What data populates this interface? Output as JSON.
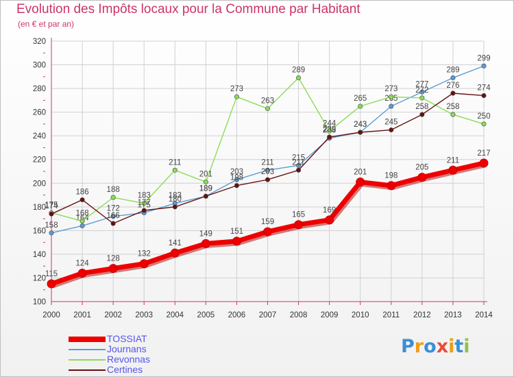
{
  "header": {
    "title": "Evolution des Impôts locaux pour la Commune par Habitant",
    "subtitle": "(en € et par an)"
  },
  "colors": {
    "title": "#cc3366",
    "grid": "#d0d0d0",
    "legend_text": "#5555ee"
  },
  "chart_data": {
    "type": "line",
    "title": "Evolution des Impôts locaux pour la Commune par Habitant",
    "subtitle": "(en € et par an)",
    "xlabel": "",
    "ylabel": "",
    "x": [
      "2000",
      "2001",
      "2002",
      "2003",
      "2004",
      "2005",
      "2006",
      "2007",
      "2008",
      "2009",
      "2010",
      "2011",
      "2012",
      "2013",
      "2014"
    ],
    "ylim": [
      100,
      320
    ],
    "yticks": [
      "100",
      "120",
      "140",
      "160",
      "180",
      "200",
      "220",
      "240",
      "260",
      "280",
      "300",
      "320"
    ],
    "grid": true,
    "legend_position": "bottom-left",
    "series": [
      {
        "name": "TOSSIAT",
        "color": "#ee0000",
        "values": [
          115,
          124,
          128,
          132,
          141,
          149,
          151,
          159,
          165,
          169,
          201,
          198,
          205,
          211,
          217
        ]
      },
      {
        "name": "Journans",
        "color": "#5b9bd5",
        "values": [
          158,
          164,
          172,
          175,
          183,
          189,
          203,
          211,
          215,
          238,
          243,
          265,
          277,
          289,
          299
        ]
      },
      {
        "name": "Revonnas",
        "color": "#88dd55",
        "values": [
          175,
          168,
          188,
          183,
          211,
          201,
          273,
          263,
          289,
          244,
          265,
          273,
          272,
          258,
          250
        ]
      },
      {
        "name": "Certines",
        "color": "#661111",
        "values": [
          174,
          186,
          166,
          177,
          180,
          189,
          198,
          203,
          211,
          239,
          243,
          245,
          258,
          276,
          274
        ]
      }
    ]
  },
  "logo": {
    "letters": [
      "P",
      "r",
      "o",
      "x",
      "i",
      "t",
      "i"
    ],
    "colors": [
      "#3a8fd6",
      "#f39c12",
      "#3a8fd6",
      "#e74c3c",
      "#f39c12",
      "#3a8fd6",
      "#8bc34a"
    ]
  }
}
